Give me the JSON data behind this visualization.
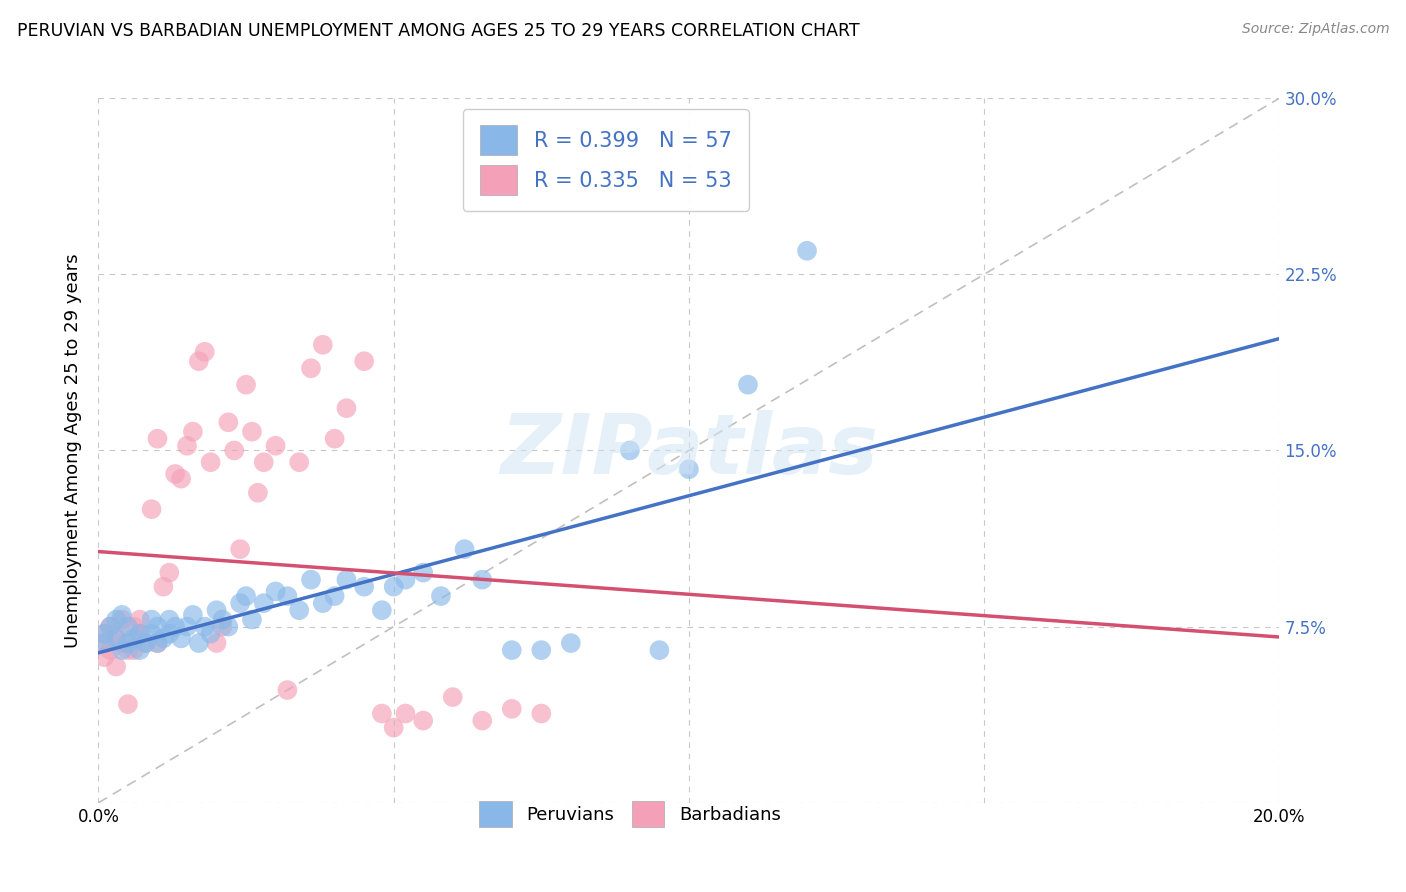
{
  "title": "PERUVIAN VS BARBADIAN UNEMPLOYMENT AMONG AGES 25 TO 29 YEARS CORRELATION CHART",
  "source": "Source: ZipAtlas.com",
  "ylabel": "Unemployment Among Ages 25 to 29 years",
  "xlim": [
    0.0,
    0.2
  ],
  "ylim": [
    0.0,
    0.3
  ],
  "xticks": [
    0.0,
    0.05,
    0.1,
    0.15,
    0.2
  ],
  "xticklabels": [
    "0.0%",
    "",
    "",
    "",
    "20.0%"
  ],
  "yticks": [
    0.0,
    0.075,
    0.15,
    0.225,
    0.3
  ],
  "yticklabels": [
    "",
    "7.5%",
    "15.0%",
    "22.5%",
    "30.0%"
  ],
  "background_color": "#ffffff",
  "grid_color": "#c8c8c8",
  "peruvian_color": "#89b8e8",
  "barbadian_color": "#f4a0b8",
  "peruvian_line_color": "#4472c4",
  "barbadian_line_color": "#d45070",
  "diagonal_color": "#c0c0c0",
  "R_peruvian": 0.399,
  "N_peruvian": 57,
  "R_barbadian": 0.335,
  "N_barbadian": 53,
  "watermark_text": "ZIPatlas",
  "peruvian_x": [
    0.001,
    0.001,
    0.002,
    0.003,
    0.003,
    0.004,
    0.004,
    0.005,
    0.005,
    0.006,
    0.007,
    0.007,
    0.008,
    0.009,
    0.009,
    0.01,
    0.01,
    0.011,
    0.012,
    0.012,
    0.013,
    0.014,
    0.015,
    0.016,
    0.017,
    0.018,
    0.019,
    0.02,
    0.021,
    0.022,
    0.024,
    0.025,
    0.026,
    0.028,
    0.03,
    0.032,
    0.034,
    0.036,
    0.038,
    0.04,
    0.042,
    0.045,
    0.048,
    0.05,
    0.052,
    0.055,
    0.058,
    0.062,
    0.065,
    0.07,
    0.075,
    0.08,
    0.09,
    0.095,
    0.1,
    0.11,
    0.12
  ],
  "peruvian_y": [
    0.072,
    0.068,
    0.075,
    0.07,
    0.078,
    0.065,
    0.08,
    0.068,
    0.075,
    0.07,
    0.065,
    0.072,
    0.068,
    0.072,
    0.078,
    0.068,
    0.075,
    0.07,
    0.072,
    0.078,
    0.075,
    0.07,
    0.075,
    0.08,
    0.068,
    0.075,
    0.072,
    0.082,
    0.078,
    0.075,
    0.085,
    0.088,
    0.078,
    0.085,
    0.09,
    0.088,
    0.082,
    0.095,
    0.085,
    0.088,
    0.095,
    0.092,
    0.082,
    0.092,
    0.095,
    0.098,
    0.088,
    0.108,
    0.095,
    0.065,
    0.065,
    0.068,
    0.15,
    0.065,
    0.142,
    0.178,
    0.235
  ],
  "barbadian_x": [
    0.001,
    0.001,
    0.001,
    0.002,
    0.002,
    0.003,
    0.003,
    0.004,
    0.004,
    0.005,
    0.005,
    0.006,
    0.006,
    0.007,
    0.007,
    0.008,
    0.009,
    0.01,
    0.01,
    0.011,
    0.012,
    0.013,
    0.014,
    0.015,
    0.016,
    0.017,
    0.018,
    0.019,
    0.02,
    0.021,
    0.022,
    0.023,
    0.024,
    0.025,
    0.026,
    0.027,
    0.028,
    0.03,
    0.032,
    0.034,
    0.036,
    0.038,
    0.04,
    0.042,
    0.045,
    0.048,
    0.05,
    0.052,
    0.055,
    0.06,
    0.065,
    0.07,
    0.075
  ],
  "barbadian_y": [
    0.068,
    0.072,
    0.062,
    0.075,
    0.065,
    0.072,
    0.058,
    0.068,
    0.078,
    0.065,
    0.042,
    0.075,
    0.065,
    0.072,
    0.078,
    0.068,
    0.125,
    0.068,
    0.155,
    0.092,
    0.098,
    0.14,
    0.138,
    0.152,
    0.158,
    0.188,
    0.192,
    0.145,
    0.068,
    0.075,
    0.162,
    0.15,
    0.108,
    0.178,
    0.158,
    0.132,
    0.145,
    0.152,
    0.048,
    0.145,
    0.185,
    0.195,
    0.155,
    0.168,
    0.188,
    0.038,
    0.032,
    0.038,
    0.035,
    0.045,
    0.035,
    0.04,
    0.038
  ]
}
